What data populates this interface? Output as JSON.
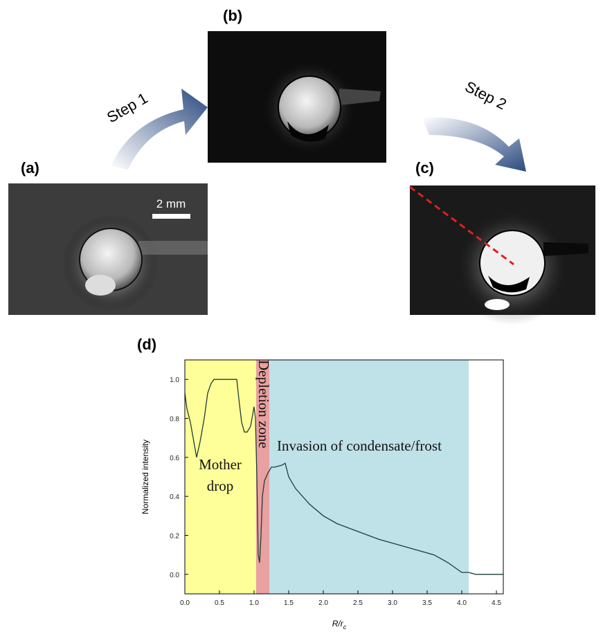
{
  "figure": {
    "panel_a": "(a)",
    "panel_b": "(b)",
    "panel_c": "(c)",
    "panel_d": "(d)",
    "step1": "Step 1",
    "step2": "Step 2",
    "scale_bar": "2 mm"
  },
  "chart_data": {
    "type": "line",
    "ylabel": "Normalized intensity",
    "xlabel": {
      "main": "R/r",
      "sub": "c"
    },
    "xlim": [
      0,
      4.6
    ],
    "ylim": [
      -0.1,
      1.1
    ],
    "xticks": [
      {
        "value": 0,
        "label": "0.0"
      },
      {
        "value": 0.5,
        "label": "0.5"
      },
      {
        "value": 1,
        "label": "1.0"
      },
      {
        "value": 1.5,
        "label": "1.5"
      },
      {
        "value": 2,
        "label": "2.0"
      },
      {
        "value": 2.5,
        "label": "2.5"
      },
      {
        "value": 3,
        "label": "3.0"
      },
      {
        "value": 3.5,
        "label": "3.5"
      },
      {
        "value": 4,
        "label": "4.0"
      },
      {
        "value": 4.5,
        "label": "4.5"
      }
    ],
    "yticks": [
      {
        "value": 0,
        "label": "0.0"
      },
      {
        "value": 0.2,
        "label": "0.2"
      },
      {
        "value": 0.4,
        "label": "0.4"
      },
      {
        "value": 0.6,
        "label": "0.6"
      },
      {
        "value": 0.8,
        "label": "0.8"
      },
      {
        "value": 1,
        "label": "1.0"
      }
    ],
    "regions": [
      {
        "label_lines": [
          "Mother",
          "drop"
        ],
        "x": [
          0,
          1.03
        ],
        "color": "#ffff99"
      },
      {
        "label_lines": [
          "Depletion zone"
        ],
        "x": [
          1.03,
          1.22
        ],
        "color": "#e8a0a0"
      },
      {
        "label_lines": [
          "Invasion of condensate/frost"
        ],
        "x": [
          1.22,
          4.1
        ],
        "color": "#bfe1e8"
      }
    ],
    "color": "#1f3b3b",
    "x": [
      0,
      0.03,
      0.08,
      0.12,
      0.17,
      0.22,
      0.28,
      0.33,
      0.38,
      0.42,
      0.5,
      0.6,
      0.7,
      0.75,
      0.78,
      0.82,
      0.86,
      0.9,
      0.95,
      1.0,
      1.02,
      1.04,
      1.06,
      1.08,
      1.1,
      1.12,
      1.15,
      1.2,
      1.25,
      1.3,
      1.4,
      1.45,
      1.5,
      1.6,
      1.8,
      2.0,
      2.2,
      2.5,
      2.8,
      3.0,
      3.3,
      3.5,
      3.6,
      3.8,
      4.0,
      4.1,
      4.2,
      4.6
    ],
    "values": [
      0.93,
      0.85,
      0.78,
      0.7,
      0.6,
      0.68,
      0.8,
      0.93,
      0.98,
      1.0,
      1.0,
      1.0,
      1.0,
      1.0,
      0.9,
      0.78,
      0.73,
      0.73,
      0.76,
      0.86,
      0.8,
      0.5,
      0.1,
      0.06,
      0.2,
      0.4,
      0.48,
      0.52,
      0.55,
      0.55,
      0.56,
      0.57,
      0.5,
      0.44,
      0.36,
      0.3,
      0.26,
      0.22,
      0.18,
      0.16,
      0.13,
      0.11,
      0.1,
      0.06,
      0.01,
      0.01,
      0.0,
      0.0
    ]
  }
}
